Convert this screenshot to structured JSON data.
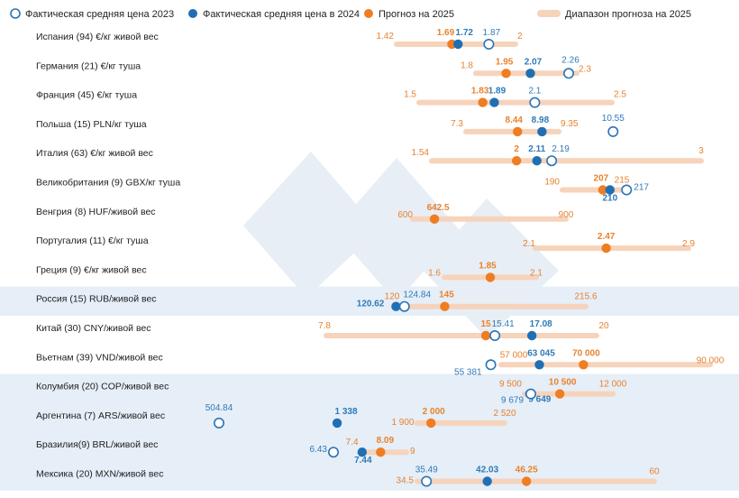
{
  "chart_data": {
    "type": "dumbbell-range",
    "legend": [
      {
        "key": "actual_2023",
        "label": "Фактическая средняя цена 2023"
      },
      {
        "key": "actual_2024",
        "label": "Фактическая средняя цена в 2024"
      },
      {
        "key": "forecast_2025",
        "label": "Прогноз на 2025"
      },
      {
        "key": "range_2025",
        "label": "Диапазон прогноза на 2025"
      }
    ],
    "colors": {
      "actual_2023": "#2a74b8",
      "actual_2024": "#1f6fb5",
      "forecast_2025": "#ef7d22",
      "range_2025": "#f6d3bb",
      "highlight": "#e6eef7",
      "watermark": "#e8eef5"
    },
    "rows": [
      {
        "label": "Испания (94)  €/кг живой вес",
        "min": 1.42,
        "max": 2,
        "y2023": 1.87,
        "y2024": 1.72,
        "f2025": 1.69,
        "texts": {
          "min": "1.42",
          "max": "2",
          "y2023": "1.87",
          "y2024": "1.72",
          "f2025": "1.69"
        },
        "highlight": false
      },
      {
        "label": "Германия (21) €/кг туша",
        "min": 1.8,
        "max": 2.3,
        "y2023": 2.26,
        "y2024": 2.07,
        "f2025": 1.95,
        "texts": {
          "min": "1.8",
          "max": "2.3",
          "y2023": "2.26",
          "y2024": "2.07",
          "f2025": "1.95"
        },
        "highlight": false
      },
      {
        "label": "Франция (45) €/кг туша",
        "min": 1.5,
        "max": 2.5,
        "y2023": 2.1,
        "y2024": 1.89,
        "f2025": 1.83,
        "texts": {
          "min": "1.5",
          "max": "2.5",
          "y2023": "2.1",
          "y2024": "1.89",
          "f2025": "1.83"
        },
        "highlight": false
      },
      {
        "label": "Польша (15) PLN/кг туша",
        "min": 7.3,
        "max": 9.35,
        "y2023": 10.55,
        "y2024": 8.98,
        "f2025": 8.44,
        "texts": {
          "min": "7.3",
          "max": "9.35",
          "y2023": "10.55",
          "y2024": "8.98",
          "f2025": "8.44"
        },
        "highlight": false
      },
      {
        "label": "Италия (63)  €/кг живой вес",
        "min": 1.54,
        "max": 3,
        "y2023": 2.19,
        "y2024": 2.11,
        "f2025": 2,
        "texts": {
          "min": "1.54",
          "max": "3",
          "y2023": "2.19",
          "y2024": "2.11",
          "f2025": "2"
        },
        "highlight": false
      },
      {
        "label": "Великобритания (9) GBX/кг туша",
        "min": 190,
        "max": 215,
        "y2023": 217,
        "y2024": 210,
        "f2025": 207,
        "texts": {
          "min": "190",
          "max": "215",
          "y2023": "217",
          "y2024": "210",
          "f2025": "207"
        },
        "highlight": false
      },
      {
        "label": "Венгрия (8) HUF/живой вес",
        "min": 600,
        "max": 900,
        "y2023": null,
        "y2024": null,
        "f2025": 642.5,
        "texts": {
          "min": "600",
          "max": "900",
          "f2025": "642.5"
        },
        "highlight": false
      },
      {
        "label": "Португалия (11) €/кг туша",
        "min": 2.1,
        "max": 2.9,
        "y2023": null,
        "y2024": null,
        "f2025": 2.47,
        "texts": {
          "min": "2.1",
          "max": "2.9",
          "f2025": "2.47"
        },
        "highlight": false
      },
      {
        "label": "Греция (9) €/кг живой вес",
        "min": 1.6,
        "max": 2.1,
        "y2023": null,
        "y2024": null,
        "f2025": 1.85,
        "texts": {
          "min": "1.6",
          "max": "2.1",
          "f2025": "1.85"
        },
        "highlight": false
      },
      {
        "label": "Россия (15) RUB/живой вес",
        "min": 120,
        "max": 215.6,
        "y2023": 124.84,
        "y2024": 120.62,
        "f2025": 145,
        "texts": {
          "min": "120",
          "max": "215.6",
          "y2023": "124.84",
          "y2024": "120.62",
          "f2025": "145"
        },
        "highlight": true
      },
      {
        "label": "Китай (30) CNY/живой вес",
        "min": 7.8,
        "max": 20,
        "y2023": 15.41,
        "y2024": 17.08,
        "f2025": 15,
        "texts": {
          "min": "7.8",
          "max": "20",
          "y2023": "15.41",
          "y2024": "17.08",
          "f2025": "15"
        },
        "highlight": false
      },
      {
        "label": "Вьетнам (39) VND/живой вес",
        "min": 57000,
        "max": 90000,
        "y2023": 55381,
        "y2024": 63045,
        "f2025": 70000,
        "texts": {
          "min": "57 000",
          "max": "90 000",
          "y2023": "55 381",
          "y2024": "63 045",
          "f2025": "70 000"
        },
        "highlight": false
      },
      {
        "label": "Колумбия (20) COP/живой вес",
        "min": 9500,
        "max": 12000,
        "y2023": 9679,
        "y2024": 9649,
        "f2025": 10500,
        "texts": {
          "min": "9 500",
          "max": "12 000",
          "y2023": "9 679",
          "y2024": "9 649",
          "f2025": "10 500"
        },
        "highlight": true
      },
      {
        "label": "Аргентина (7) ARS/живой вес",
        "min": 1900,
        "max": 2520,
        "y2023": 504.84,
        "y2024": 1338,
        "f2025": 2000,
        "texts": {
          "min": "1 900",
          "max": "2 520",
          "y2023": "504.84",
          "y2024": "1 338",
          "f2025": "2 000"
        },
        "highlight": true
      },
      {
        "label": "Бразилия(9) BRL/живой вес",
        "min": 7.4,
        "max": 9,
        "y2023": 6.43,
        "y2024": 7.44,
        "f2025": 8.09,
        "texts": {
          "min": "7.4",
          "max": "9",
          "y2023": "6.43",
          "y2024": "7.44",
          "f2025": "8.09"
        },
        "highlight": true
      },
      {
        "label": "Мексика (20) MXN/живой вес",
        "min": 34.5,
        "max": 60,
        "y2023": 35.49,
        "y2024": 42.03,
        "f2025": 46.25,
        "texts": {
          "min": "34.5",
          "max": "60",
          "y2023": "35.49",
          "y2024": "42.03",
          "f2025": "46.25"
        },
        "highlight": true
      }
    ]
  }
}
